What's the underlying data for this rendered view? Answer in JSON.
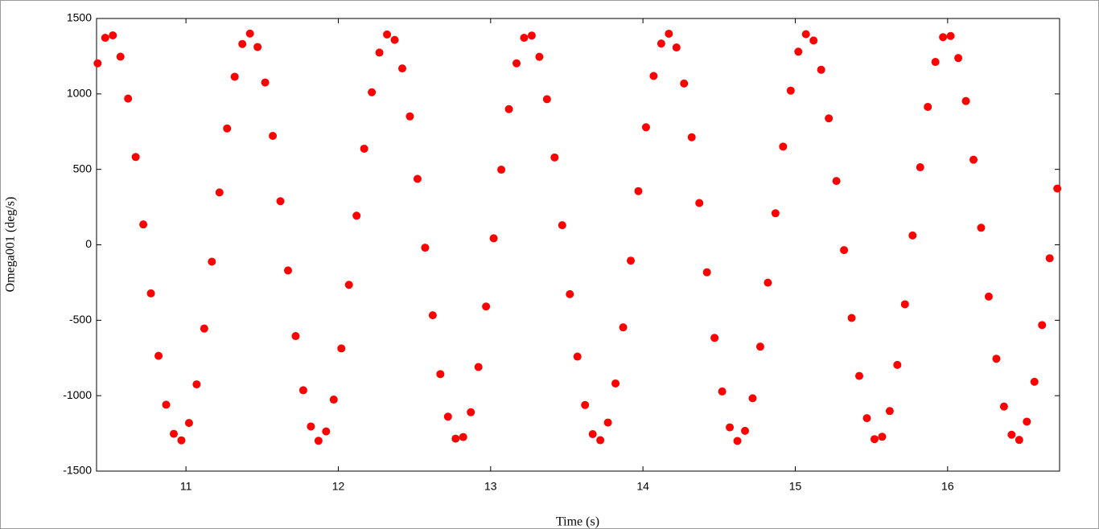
{
  "chart_data": {
    "type": "scatter",
    "xlabel": "Time (s)",
    "ylabel": "Omega001 (deg/s)",
    "color": "#ff0000",
    "x": [
      10.42,
      10.47,
      10.52,
      10.57,
      10.62,
      10.67,
      10.72,
      10.77,
      10.82,
      10.87,
      10.92,
      10.97,
      11.02,
      11.07,
      11.12,
      11.17,
      11.22,
      11.27,
      11.32,
      11.37,
      11.42,
      11.47,
      11.52,
      11.57,
      11.62,
      11.67,
      11.72,
      11.77,
      11.82,
      11.87,
      11.92,
      11.97,
      12.02,
      12.07,
      12.12,
      12.17,
      12.22,
      12.27,
      12.32,
      12.37,
      12.42,
      12.47,
      12.52,
      12.57,
      12.62,
      12.67,
      12.72,
      12.77,
      12.82,
      12.87,
      12.92,
      12.97,
      13.02,
      13.07,
      13.12,
      13.17,
      13.22,
      13.27,
      13.32,
      13.37,
      13.42,
      13.47,
      13.52,
      13.57,
      13.62,
      13.67,
      13.72,
      13.77,
      13.82,
      13.87,
      13.92,
      13.97,
      14.02,
      14.07,
      14.12,
      14.17,
      14.22,
      14.27,
      14.32,
      14.37,
      14.42,
      14.47,
      14.52,
      14.57,
      14.62,
      14.67,
      14.72,
      14.77,
      14.82,
      14.87,
      14.92,
      14.97,
      15.02,
      15.07,
      15.12,
      15.17,
      15.22,
      15.27,
      15.32,
      15.37,
      15.42,
      15.47,
      15.52,
      15.57,
      15.62,
      15.67,
      15.72,
      15.77,
      15.82,
      15.87,
      15.92,
      15.97,
      16.02,
      16.07,
      16.12,
      16.17,
      16.22,
      16.27,
      16.32,
      16.37,
      16.42,
      16.47,
      16.52,
      16.57,
      16.62,
      16.67,
      16.72
    ],
    "values": [
      1203,
      1372,
      1388,
      1247,
      969,
      582,
      135,
      -322,
      -736,
      -1060,
      -1253,
      -1296,
      -1181,
      -925,
      -555,
      -112,
      347,
      771,
      1114,
      1331,
      1400,
      1311,
      1076,
      722,
      289,
      -170,
      -605,
      -964,
      -1204,
      -1299,
      -1237,
      -1026,
      -687,
      -265,
      193,
      637,
      1011,
      1274,
      1394,
      1358,
      1169,
      851,
      437,
      -19,
      -467,
      -857,
      -1139,
      -1285,
      -1274,
      -1110,
      -810,
      -409,
      43,
      498,
      899,
      1203,
      1372,
      1387,
      1246,
      965,
      579,
      130,
      -327,
      -741,
      -1062,
      -1255,
      -1295,
      -1178,
      -919,
      -547,
      -105,
      356,
      779,
      1119,
      1334,
      1399,
      1308,
      1069,
      713,
      277,
      -182,
      -617,
      -972,
      -1210,
      -1300,
      -1233,
      -1017,
      -675,
      -251,
      209,
      651,
      1022,
      1280,
      1396,
      1354,
      1160,
      838,
      423,
      -35,
      -485,
      -869,
      -1149,
      -1288,
      -1272,
      -1102,
      -796,
      -394,
      62,
      514,
      914,
      1212,
      1376,
      1384,
      1238,
      953,
      564,
      113,
      -343,
      -755,
      -1072,
      -1259,
      -1293,
      -1172,
      -908,
      -532,
      -89,
      373
    ],
    "xlim": [
      10.413,
      16.735
    ],
    "xticks": [
      11,
      12,
      13,
      14,
      15,
      16
    ],
    "ylim": [
      -1500,
      1500
    ],
    "yticks": [
      -1500,
      -1000,
      -500,
      0,
      500,
      1000,
      1500
    ]
  }
}
